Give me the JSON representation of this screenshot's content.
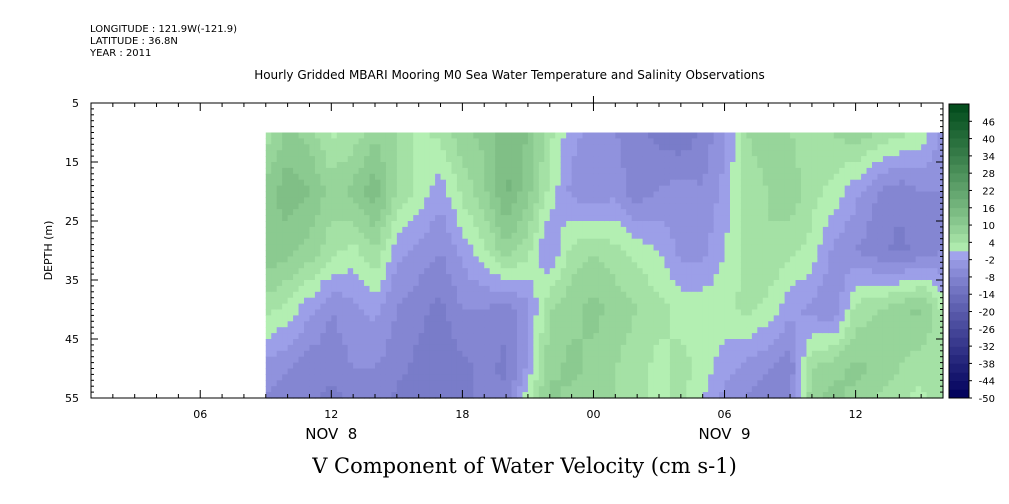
{
  "header": {
    "longitude": "LONGITUDE : 121.9W(-121.9)",
    "latitude": "LATITUDE : 36.8N",
    "year": "YEAR : 2011",
    "title": "Hourly Gridded MBARI Mooring M0 Sea Water Temperature and Salinity Observations"
  },
  "chart_data": {
    "type": "heatmap",
    "title": "Hourly Gridded MBARI Mooring M0 Sea Water Temperature and Salinity Observations",
    "variable_label": "V Component of Water Velocity (cm s-1)",
    "xlabel": "",
    "ylabel": "DEPTH (m)",
    "y_ticks": [
      "5",
      "15",
      "25",
      "35",
      "45",
      "55"
    ],
    "y_range": [
      5,
      55
    ],
    "y_inverted": true,
    "x_ticks": [
      "06",
      "12",
      "18",
      "00",
      "06",
      "12"
    ],
    "x_tick_hours": [
      6,
      12,
      18,
      24,
      30,
      36
    ],
    "x_range_hours": [
      1,
      40
    ],
    "x_data_start_hour": 9,
    "x_data_depth_top": 10,
    "date_labels": [
      {
        "text": "NOV  8",
        "hour": 12
      },
      {
        "text": "NOV  9",
        "hour": 30
      }
    ],
    "colorbar": {
      "labels": [
        "46",
        "40",
        "34",
        "28",
        "22",
        "16",
        "10",
        "4",
        "-2",
        "-8",
        "-14",
        "-20",
        "-26",
        "-32",
        "-38",
        "-44",
        "-50"
      ],
      "min": -50,
      "max": 52,
      "step": 3,
      "low_color": "#00005a",
      "mid_low_color": "#a9acf4",
      "mid_high_color": "#b7f2b5",
      "high_color": "#004a1a"
    },
    "field_samples": {
      "hours": [
        9,
        10,
        11,
        12,
        13,
        14,
        15,
        16,
        17,
        18,
        19,
        20,
        21,
        22,
        23,
        24,
        25,
        26,
        27,
        28,
        29,
        30,
        31,
        32,
        33,
        34,
        35,
        36,
        37,
        38,
        39,
        40
      ],
      "depths": [
        10,
        20,
        30,
        40,
        50,
        55
      ],
      "values": [
        [
          4,
          10,
          8,
          2,
          4,
          8,
          6,
          2,
          4,
          8,
          10,
          14,
          12,
          4,
          -2,
          -4,
          -6,
          -8,
          -10,
          -12,
          -8,
          -4,
          6,
          8,
          6,
          4,
          6,
          8,
          6,
          4,
          2,
          -4
        ],
        [
          10,
          14,
          12,
          8,
          10,
          14,
          6,
          2,
          -2,
          4,
          8,
          16,
          10,
          2,
          -4,
          -6,
          -4,
          -8,
          -6,
          -4,
          -6,
          -2,
          4,
          6,
          8,
          4,
          2,
          -2,
          -6,
          -8,
          -6,
          -6
        ],
        [
          12,
          10,
          8,
          4,
          2,
          6,
          -2,
          -4,
          -6,
          -2,
          2,
          8,
          4,
          -4,
          4,
          6,
          4,
          2,
          0,
          -4,
          -4,
          0,
          4,
          6,
          4,
          2,
          -4,
          -6,
          -8,
          -10,
          -8,
          -6
        ],
        [
          4,
          2,
          -2,
          -6,
          -4,
          -2,
          -6,
          -8,
          -10,
          -6,
          -6,
          -8,
          -4,
          6,
          8,
          10,
          8,
          6,
          4,
          2,
          2,
          2,
          4,
          2,
          -2,
          -4,
          -6,
          4,
          6,
          8,
          10,
          2
        ],
        [
          -4,
          -6,
          -8,
          -8,
          -6,
          -6,
          -8,
          -10,
          -12,
          -10,
          -8,
          -10,
          -2,
          8,
          10,
          8,
          6,
          4,
          2,
          4,
          2,
          -2,
          -4,
          -6,
          -8,
          6,
          8,
          10,
          8,
          6,
          4,
          6
        ],
        [
          -6,
          -8,
          -8,
          -10,
          -8,
          -6,
          -10,
          -12,
          -12,
          -10,
          -8,
          -8,
          2,
          10,
          8,
          6,
          6,
          4,
          2,
          4,
          0,
          -4,
          -6,
          -8,
          -6,
          8,
          10,
          8,
          6,
          4,
          2,
          6
        ]
      ]
    }
  }
}
